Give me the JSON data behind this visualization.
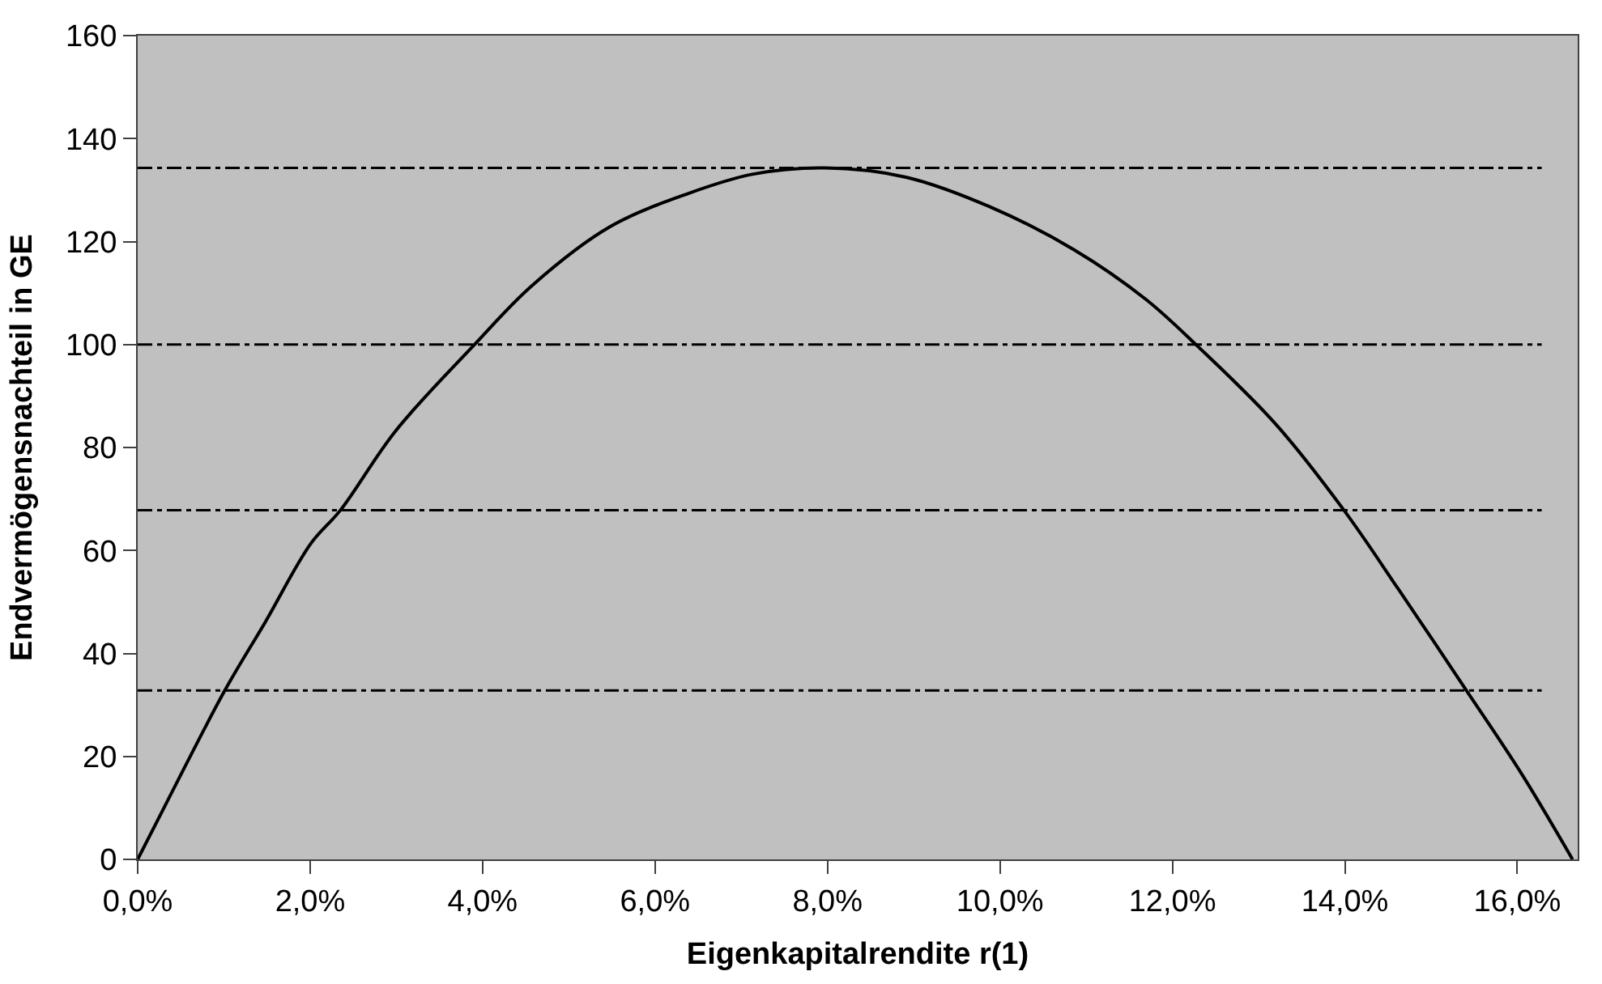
{
  "chart_data": {
    "type": "line",
    "xlabel": "Eigenkapitalrendite r(1)",
    "ylabel": "Endvermögensnachteil in GE",
    "x": [
      0,
      0.35,
      1.01,
      1.48,
      2.01,
      2.35,
      2.99,
      3.89,
      4.57,
      5.48,
      6.38,
      7.14,
      7.97,
      8.91,
      9.89,
      10.86,
      11.69,
      12.29,
      13.2,
      13.99,
      14.62,
      15.41,
      16.05,
      16.64
    ],
    "series": [
      {
        "color": "#000000",
        "values": [
          0,
          11.5,
          32.8,
          46.1,
          61.4,
          67.8,
          83.2,
          99.7,
          111.4,
          122.9,
          129.3,
          133.1,
          134.3,
          132.5,
          126.7,
          118.4,
          108.8,
          99.7,
          84.5,
          67.8,
          52.5,
          32.8,
          16.6,
          0
        ]
      }
    ],
    "xlim": [
      0,
      16.7
    ],
    "xticks": [
      {
        "value": 0,
        "label": "0,0%"
      },
      {
        "value": 2,
        "label": "2,0%"
      },
      {
        "value": 4,
        "label": "4,0%"
      },
      {
        "value": 6,
        "label": "6,0%"
      },
      {
        "value": 8,
        "label": "8,0%"
      },
      {
        "value": 10,
        "label": "10,0%"
      },
      {
        "value": 12,
        "label": "12,0%"
      },
      {
        "value": 14,
        "label": "14,0%"
      },
      {
        "value": 16,
        "label": "16,0%"
      }
    ],
    "ylim": [
      0,
      160
    ],
    "yticks": [
      0,
      20,
      40,
      60,
      80,
      100,
      120,
      140,
      160
    ],
    "ref_lines": [
      {
        "axis": "y",
        "value": 134.3,
        "color": "#000000",
        "line_style": "dashdot"
      },
      {
        "axis": "y",
        "value": 100,
        "color": "#000000",
        "line_style": "dashdot"
      },
      {
        "axis": "y",
        "value": 67.8,
        "color": "#000000",
        "line_style": "dashdot"
      },
      {
        "axis": "y",
        "value": 32.8,
        "color": "#000000",
        "line_style": "dashdot"
      }
    ],
    "grid": false,
    "marker": "none",
    "line_style": "solid"
  }
}
